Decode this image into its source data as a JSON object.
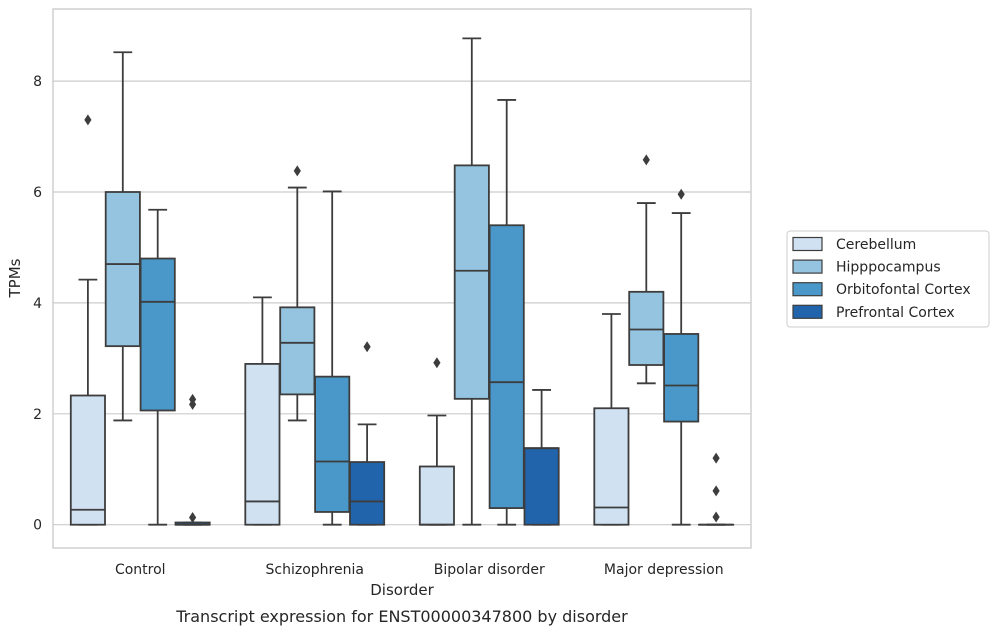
{
  "chart_data": {
    "type": "box",
    "title": "Transcript expression for ENST00000347800 by disorder",
    "xlabel": "Disorder",
    "ylabel": "TPMs",
    "ylim": [
      -0.42,
      9.3
    ],
    "yticks": [
      0,
      2,
      4,
      6,
      8
    ],
    "grid": true,
    "legend_position": "right",
    "categories": [
      "Control",
      "Schizophrenia",
      "Bipolar disorder",
      "Major depression"
    ],
    "series": [
      {
        "name": "Cerebellum",
        "color": "#d0e1f2",
        "boxes": [
          {
            "whislo": 0.0,
            "q1": 0.0,
            "med": 0.27,
            "q3": 2.33,
            "whishi": 4.42,
            "fliers": [
              7.3
            ]
          },
          {
            "whislo": 0.0,
            "q1": 0.0,
            "med": 0.42,
            "q3": 2.9,
            "whishi": 4.1,
            "fliers": []
          },
          {
            "whislo": 0.0,
            "q1": 0.0,
            "med": 0.0,
            "q3": 1.05,
            "whishi": 1.97,
            "fliers": [
              2.92
            ]
          },
          {
            "whislo": 0.0,
            "q1": 0.0,
            "med": 0.31,
            "q3": 2.1,
            "whishi": 3.8,
            "fliers": []
          }
        ]
      },
      {
        "name": "Hipppocampus",
        "color": "#94c4df",
        "boxes": [
          {
            "whislo": 1.88,
            "q1": 3.22,
            "med": 4.7,
            "q3": 6.0,
            "whishi": 8.52,
            "fliers": []
          },
          {
            "whislo": 1.88,
            "q1": 2.35,
            "med": 3.28,
            "q3": 3.92,
            "whishi": 6.08,
            "fliers": [
              6.38
            ]
          },
          {
            "whislo": 0.0,
            "q1": 2.27,
            "med": 4.58,
            "q3": 6.48,
            "whishi": 8.77,
            "fliers": []
          },
          {
            "whislo": 2.55,
            "q1": 2.88,
            "med": 3.52,
            "q3": 4.2,
            "whishi": 5.8,
            "fliers": [
              6.58
            ]
          }
        ]
      },
      {
        "name": "Orbitofontal Cortex",
        "color": "#4a98c9",
        "boxes": [
          {
            "whislo": 0.0,
            "q1": 2.06,
            "med": 4.02,
            "q3": 4.8,
            "whishi": 5.68,
            "fliers": []
          },
          {
            "whislo": 0.0,
            "q1": 0.23,
            "med": 1.14,
            "q3": 2.67,
            "whishi": 6.01,
            "fliers": []
          },
          {
            "whislo": 0.0,
            "q1": 0.3,
            "med": 2.57,
            "q3": 5.4,
            "whishi": 7.66,
            "fliers": []
          },
          {
            "whislo": 0.0,
            "q1": 1.86,
            "med": 2.51,
            "q3": 3.44,
            "whishi": 5.62,
            "fliers": [
              5.96
            ]
          }
        ]
      },
      {
        "name": "Prefrontal Cortex",
        "color": "#2164ab",
        "boxes": [
          {
            "whislo": 0.0,
            "q1": 0.0,
            "med": 0.0,
            "q3": 0.04,
            "whishi": 0.04,
            "fliers": [
              0.13,
              2.17,
              2.26
            ]
          },
          {
            "whislo": 0.0,
            "q1": 0.0,
            "med": 0.42,
            "q3": 1.13,
            "whishi": 1.81,
            "fliers": [
              3.21
            ]
          },
          {
            "whislo": 0.0,
            "q1": 0.0,
            "med": 1.38,
            "q3": 1.38,
            "whishi": 2.43,
            "fliers": []
          },
          {
            "whislo": 0.0,
            "q1": 0.0,
            "med": 0.0,
            "q3": 0.0,
            "whishi": 0.0,
            "fliers": [
              0.14,
              0.61,
              1.2
            ]
          }
        ]
      }
    ]
  }
}
